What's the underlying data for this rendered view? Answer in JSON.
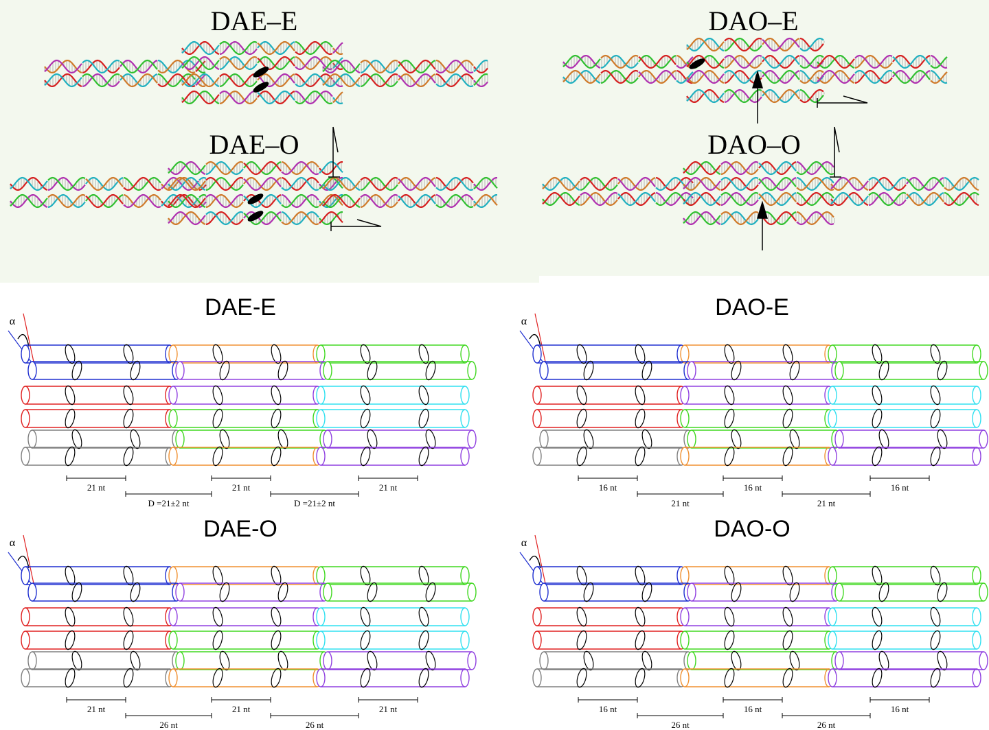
{
  "top_panels": [
    {
      "title": "DAE–E"
    },
    {
      "title": "DAE–O"
    },
    {
      "title": "DAO–E"
    },
    {
      "title": "DAO–O"
    }
  ],
  "schematics": [
    {
      "title": "DAE-E",
      "alpha": "α",
      "crossover_spacing": [
        "21 nt",
        "21 nt",
        "21 nt"
      ],
      "domain_spacing": [
        "D =21±2 nt",
        "D =21±2 nt"
      ]
    },
    {
      "title": "DAO-E",
      "alpha": "α",
      "crossover_spacing": [
        "16 nt",
        "16 nt",
        "16 nt"
      ],
      "domain_spacing": [
        "21 nt",
        "21 nt"
      ]
    },
    {
      "title": "DAE-O",
      "alpha": "α",
      "crossover_spacing": [
        "21 nt",
        "21 nt",
        "21 nt"
      ],
      "domain_spacing": [
        "26 nt",
        "26 nt"
      ]
    },
    {
      "title": "DAO-O",
      "alpha": "α",
      "crossover_spacing": [
        "16 nt",
        "16 nt",
        "16 nt"
      ],
      "domain_spacing": [
        "26 nt",
        "26 nt"
      ]
    }
  ]
}
